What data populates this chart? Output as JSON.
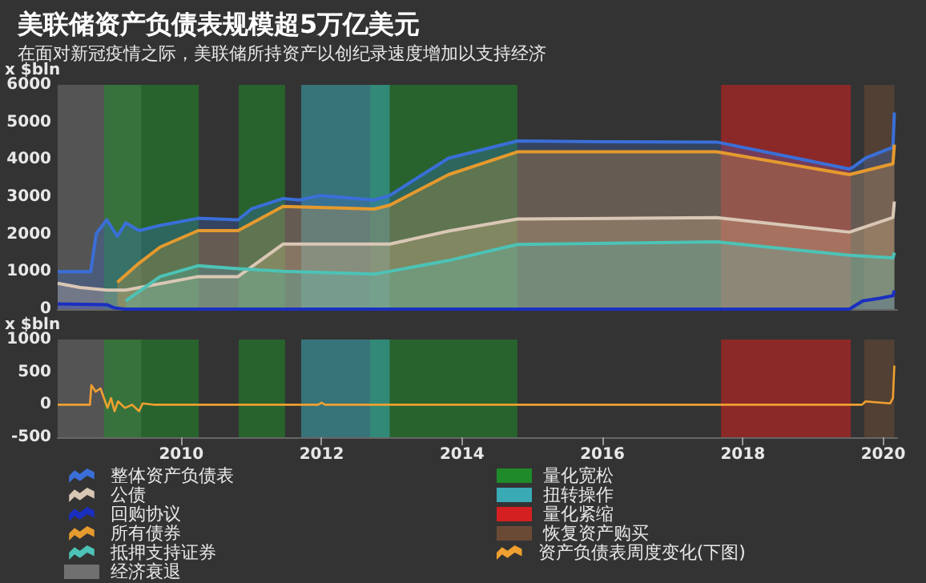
{
  "chart_data": [
    {
      "type": "area",
      "title": "美联储资产负债表规模超5万亿美元",
      "subtitle": "在面对新冠疫情之际，美联储所持资产以创纪录速度增加以支持经济",
      "ylabel": "x $bln",
      "xlim": [
        2008.24,
        2020.2
      ],
      "xticks": [
        2010,
        2012,
        2014,
        2016,
        2018,
        2020
      ],
      "ylim": [
        0,
        6000
      ],
      "yticks": [
        0,
        1000,
        2000,
        3000,
        4000,
        5000,
        6000
      ],
      "tick_labels": "y",
      "legend": "bottom",
      "grid": false,
      "series": [
        {
          "name": "整体资产负债表",
          "color": "#3a6fd8",
          "x": [
            2008.24,
            2008.71,
            2008.79,
            2008.94,
            2009.09,
            2009.21,
            2009.4,
            2009.7,
            2010.24,
            2010.81,
            2011.0,
            2011.45,
            2011.68,
            2011.99,
            2012.75,
            2012.97,
            2013.81,
            2014.79,
            2016.0,
            2017.63,
            2019.52,
            2019.59,
            2019.75,
            2020.14,
            2020.16
          ],
          "values": [
            1000,
            1000,
            2020,
            2390,
            1950,
            2310,
            2100,
            2240,
            2430,
            2390,
            2680,
            2960,
            2920,
            3040,
            2920,
            3040,
            4040,
            4500,
            4480,
            4470,
            3750,
            3820,
            4040,
            4330,
            5260
          ]
        },
        {
          "name": "公债",
          "color": "#d9c7b5",
          "x": [
            2008.24,
            2008.56,
            2008.94,
            2009.21,
            2010.24,
            2010.81,
            2011.45,
            2012.97,
            2013.81,
            2014.79,
            2017.63,
            2019.52,
            2020.14,
            2020.16
          ],
          "values": [
            690,
            580,
            510,
            510,
            870,
            870,
            1740,
            1740,
            2090,
            2410,
            2450,
            2060,
            2450,
            2880
          ]
        },
        {
          "name": "回购协议",
          "color": "#1a2fc0",
          "x": [
            2008.24,
            2008.94,
            2009.05,
            2009.2,
            2019.52,
            2019.71,
            2019.95,
            2020.14,
            2020.16
          ],
          "values": [
            140,
            120,
            30,
            0,
            0,
            220,
            290,
            360,
            500
          ]
        },
        {
          "name": "所有债券",
          "color": "#e59a2e",
          "x": [
            2009.09,
            2009.4,
            2009.7,
            2010.24,
            2010.81,
            2011.45,
            2012.75,
            2012.97,
            2013.81,
            2014.79,
            2017.63,
            2019.52,
            2020.14,
            2020.16
          ],
          "values": [
            720,
            1230,
            1660,
            2100,
            2100,
            2750,
            2680,
            2780,
            3600,
            4210,
            4210,
            3600,
            3890,
            4400
          ]
        },
        {
          "name": "抵押支持证券",
          "color": "#4cc3b6",
          "x": [
            2009.21,
            2009.7,
            2010.24,
            2010.81,
            2011.45,
            2012.75,
            2012.97,
            2013.81,
            2014.79,
            2017.63,
            2019.52,
            2020.14,
            2020.16
          ],
          "values": [
            220,
            870,
            1160,
            1080,
            1010,
            940,
            1010,
            1300,
            1730,
            1800,
            1440,
            1370,
            1510
          ]
        }
      ],
      "bands": [
        {
          "axis": "x",
          "from": 2008.24,
          "to": 2009.43,
          "label": "经济衰退",
          "color": "#707070"
        },
        {
          "axis": "x",
          "from": 2008.9,
          "to": 2010.25,
          "label": "量化宽松",
          "color": "#1f8a2a"
        },
        {
          "axis": "x",
          "from": 2010.82,
          "to": 2011.48,
          "color": "#1f8a2a"
        },
        {
          "axis": "x",
          "from": 2011.71,
          "to": 2012.97,
          "label": "扭转操作",
          "color": "#3aaab5"
        },
        {
          "axis": "x",
          "from": 2012.69,
          "to": 2014.79,
          "color": "#1f8a2a"
        },
        {
          "axis": "x",
          "from": 2017.69,
          "to": 2019.54,
          "label": "量化紧缩",
          "color": "#d42020"
        },
        {
          "axis": "x",
          "from": 2019.73,
          "to": 2020.16,
          "label": "恢复资产购买",
          "color": "#6b4a35"
        }
      ]
    },
    {
      "type": "line",
      "ylabel": "x $bln",
      "xlim": [
        2008.24,
        2020.2
      ],
      "xticks": [
        2010,
        2012,
        2014,
        2016,
        2018,
        2020
      ],
      "ylim": [
        -500,
        1000
      ],
      "yticks": [
        -500,
        0,
        500,
        1000
      ],
      "legend": "bottom",
      "grid": false,
      "series": [
        {
          "name": "资产负债表周度变化(下图)",
          "color": "#f0a030",
          "x": [
            2008.24,
            2008.7,
            2008.72,
            2008.78,
            2008.85,
            2008.9,
            2008.95,
            2009.0,
            2009.05,
            2009.1,
            2009.2,
            2009.3,
            2009.4,
            2009.45,
            2009.6,
            2011.95,
            2012.0,
            2012.05,
            2019.7,
            2019.75,
            2020.1,
            2020.14,
            2020.16
          ],
          "values": [
            0,
            0,
            300,
            200,
            250,
            100,
            -50,
            100,
            -100,
            50,
            -50,
            0,
            -100,
            20,
            0,
            0,
            30,
            0,
            0,
            50,
            20,
            100,
            600
          ]
        }
      ],
      "bands": [
        {
          "axis": "x",
          "from": 2008.24,
          "to": 2009.43,
          "color": "#707070"
        },
        {
          "axis": "x",
          "from": 2008.9,
          "to": 2010.25,
          "color": "#1f8a2a"
        },
        {
          "axis": "x",
          "from": 2010.82,
          "to": 2011.48,
          "color": "#1f8a2a"
        },
        {
          "axis": "x",
          "from": 2011.71,
          "to": 2012.97,
          "color": "#3aaab5"
        },
        {
          "axis": "x",
          "from": 2012.69,
          "to": 2014.79,
          "color": "#1f8a2a"
        },
        {
          "axis": "x",
          "from": 2017.69,
          "to": 2019.54,
          "color": "#d42020"
        },
        {
          "axis": "x",
          "from": 2019.73,
          "to": 2020.16,
          "color": "#6b4a35"
        }
      ]
    }
  ]
}
